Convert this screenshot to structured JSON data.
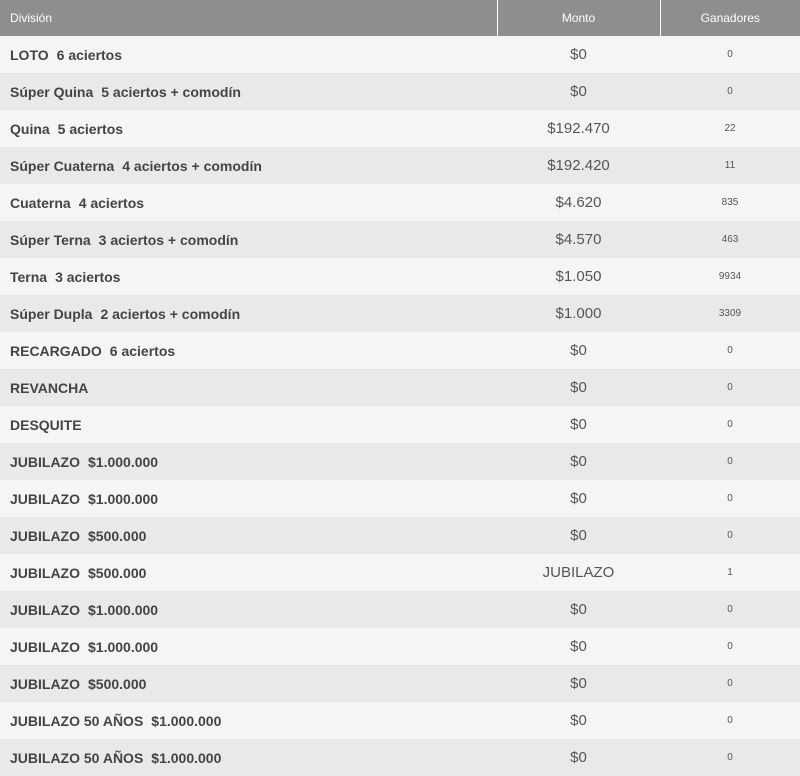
{
  "table": {
    "headers": {
      "division": "División",
      "monto": "Monto",
      "ganadores": "Ganadores"
    },
    "rows": [
      {
        "name": "LOTO",
        "detail": "6 aciertos",
        "monto": "$0",
        "ganadores": "0"
      },
      {
        "name": "Súper Quina",
        "detail": "5 aciertos + comodín",
        "monto": "$0",
        "ganadores": "0"
      },
      {
        "name": "Quina",
        "detail": "5 aciertos",
        "monto": "$192.470",
        "ganadores": "22"
      },
      {
        "name": "Súper Cuaterna",
        "detail": "4 aciertos + comodín",
        "monto": "$192.420",
        "ganadores": "11"
      },
      {
        "name": "Cuaterna",
        "detail": "4 aciertos",
        "monto": "$4.620",
        "ganadores": "835"
      },
      {
        "name": "Súper Terna",
        "detail": "3 aciertos + comodín",
        "monto": "$4.570",
        "ganadores": "463"
      },
      {
        "name": "Terna",
        "detail": "3 aciertos",
        "monto": "$1.050",
        "ganadores": "9934"
      },
      {
        "name": "Súper Dupla",
        "detail": "2 aciertos + comodín",
        "monto": "$1.000",
        "ganadores": "3309"
      },
      {
        "name": "RECARGADO",
        "detail": "6 aciertos",
        "monto": "$0",
        "ganadores": "0"
      },
      {
        "name": "REVANCHA",
        "detail": "",
        "monto": "$0",
        "ganadores": "0"
      },
      {
        "name": "DESQUITE",
        "detail": "",
        "monto": "$0",
        "ganadores": "0"
      },
      {
        "name": "JUBILAZO",
        "detail": "$1.000.000",
        "monto": "$0",
        "ganadores": "0"
      },
      {
        "name": "JUBILAZO",
        "detail": "$1.000.000",
        "monto": "$0",
        "ganadores": "0"
      },
      {
        "name": "JUBILAZO",
        "detail": "$500.000",
        "monto": "$0",
        "ganadores": "0"
      },
      {
        "name": "JUBILAZO",
        "detail": "$500.000",
        "monto": "JUBILAZO",
        "ganadores": "1"
      },
      {
        "name": "JUBILAZO",
        "detail": "$1.000.000",
        "monto": "$0",
        "ganadores": "0"
      },
      {
        "name": "JUBILAZO",
        "detail": "$1.000.000",
        "monto": "$0",
        "ganadores": "0"
      },
      {
        "name": "JUBILAZO",
        "detail": "$500.000",
        "monto": "$0",
        "ganadores": "0"
      },
      {
        "name": "JUBILAZO 50 AÑOS",
        "detail": "$1.000.000",
        "monto": "$0",
        "ganadores": "0"
      },
      {
        "name": "JUBILAZO 50 AÑOS",
        "detail": "$1.000.000",
        "monto": "$0",
        "ganadores": "0"
      }
    ]
  }
}
